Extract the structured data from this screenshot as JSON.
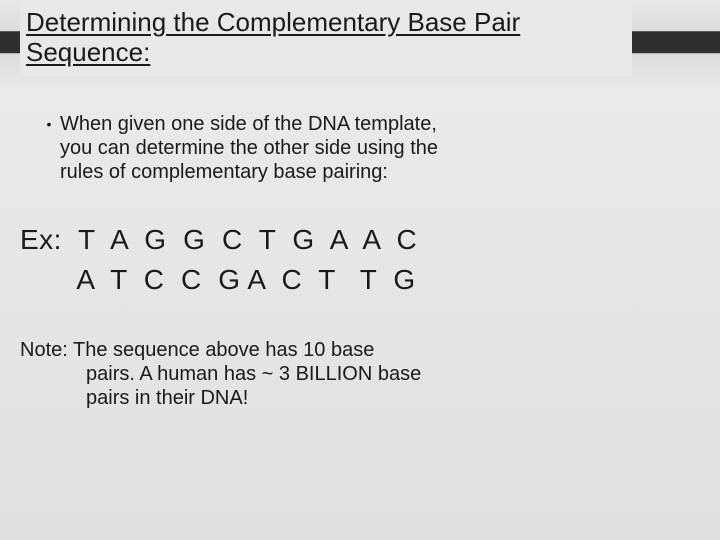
{
  "colors": {
    "page_bg_top": "#ececec",
    "page_bg_bottom": "#e0e0e0",
    "header_dark_stripe": "#2e2e2e",
    "text_color": "#1a1a1a",
    "title_bg": "#e8e8e8"
  },
  "typography": {
    "font_family": "Arial, Helvetica, sans-serif",
    "title_fontsize": 26,
    "body_fontsize": 20,
    "example_fontsize": 28,
    "title_underline": true
  },
  "title": {
    "line1": "Determining the Complementary Base Pair",
    "line2": "Sequence:"
  },
  "bullet": {
    "symbol": "•",
    "line1": "When given one side of the DNA template,",
    "line2": "you can determine the other side using the",
    "line3": "rules of complementary base pairing:"
  },
  "example": {
    "row1": "Ex:  T  A  G  G  C  T  G  A  A  C",
    "row2": "       A  T  C  C  G A  C  T   T  G"
  },
  "note": {
    "line1": "Note:  The sequence above has 10 base",
    "line2": "pairs.  A human has ~ 3 BILLION base",
    "line3": "pairs in their DNA!"
  }
}
